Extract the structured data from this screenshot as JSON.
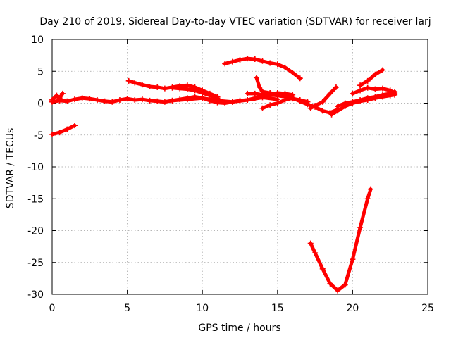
{
  "chart_data": {
    "type": "scatter",
    "title": "Day 210 of 2019, Sidereal Day-to-day VTEC variation (SDTVAR) for receiver larj",
    "xlabel": "GPS time / hours",
    "ylabel": "SDTVAR / TECUs",
    "xlim": [
      0,
      25
    ],
    "ylim": [
      -30,
      10
    ],
    "xticks": [
      0,
      5,
      10,
      15,
      20,
      25
    ],
    "yticks": [
      -30,
      -25,
      -20,
      -15,
      -10,
      -5,
      0,
      5,
      10
    ],
    "grid": true,
    "legend": "none",
    "series_color": "#ff0000",
    "series": [
      {
        "x": [
          0.0,
          0.5,
          1.0,
          1.5
        ],
        "y": [
          -4.9,
          -4.6,
          -4.1,
          -3.5
        ]
      },
      {
        "x": [
          0.0,
          0.3,
          0.5,
          0.7
        ],
        "y": [
          0.5,
          1.2,
          0.8,
          1.5
        ]
      },
      {
        "x": [
          0.0,
          0.5,
          1.0,
          1.5,
          2.0,
          2.5,
          3.0,
          3.5,
          4.0,
          4.5,
          5.0,
          5.5,
          6.0,
          6.5,
          7.0,
          7.5,
          8.0,
          8.5,
          9.0,
          9.5,
          10.0,
          10.5,
          11.0,
          11.5,
          12.0,
          12.5,
          13.0,
          13.5,
          14.0,
          14.5,
          15.0,
          15.5,
          16.0,
          16.5,
          17.0
        ],
        "y": [
          0.2,
          0.4,
          0.3,
          0.6,
          0.8,
          0.7,
          0.5,
          0.3,
          0.2,
          0.5,
          0.7,
          0.5,
          0.6,
          0.4,
          0.3,
          0.2,
          0.4,
          0.6,
          0.8,
          1.0,
          0.8,
          0.4,
          0.1,
          0.0,
          0.2,
          0.4,
          0.5,
          0.8,
          1.0,
          1.3,
          1.2,
          1.0,
          0.7,
          0.5,
          0.2
        ]
      },
      {
        "x": [
          8.0,
          9.0,
          10.0,
          11.0,
          12.0,
          13.0,
          14.0,
          15.0
        ],
        "y": [
          0.4,
          0.6,
          0.8,
          0.4,
          0.2,
          0.5,
          0.9,
          0.6
        ]
      },
      {
        "x": [
          5.1,
          5.5,
          6.0,
          6.5,
          7.0,
          7.5,
          8.0,
          8.5,
          9.0,
          9.5,
          10.0,
          10.5,
          11.0
        ],
        "y": [
          3.5,
          3.2,
          2.9,
          2.6,
          2.5,
          2.3,
          2.5,
          2.7,
          2.8,
          2.5,
          2.0,
          1.5,
          1.0
        ]
      },
      {
        "x": [
          8.0,
          8.5,
          9.0,
          9.5,
          10.0,
          10.5,
          11.0
        ],
        "y": [
          2.4,
          2.3,
          2.2,
          2.0,
          1.6,
          1.2,
          0.8
        ]
      },
      {
        "x": [
          11.5,
          12.0,
          12.5,
          13.0,
          13.5,
          14.0,
          14.5,
          15.0,
          15.5,
          16.0,
          16.5
        ],
        "y": [
          6.2,
          6.5,
          6.8,
          7.0,
          6.9,
          6.6,
          6.3,
          6.1,
          5.6,
          4.8,
          3.9
        ]
      },
      {
        "x": [
          13.6,
          13.8,
          14.0,
          14.5,
          15.0,
          15.5,
          16.0
        ],
        "y": [
          4.0,
          2.5,
          1.8,
          1.6,
          1.4,
          1.1,
          0.9
        ]
      },
      {
        "x": [
          13.0,
          13.5,
          14.0,
          14.5,
          15.0,
          15.5,
          16.0
        ],
        "y": [
          1.5,
          1.5,
          1.3,
          1.4,
          1.6,
          1.5,
          1.3
        ]
      },
      {
        "x": [
          14.0,
          14.5,
          15.0,
          15.5,
          16.0
        ],
        "y": [
          -0.8,
          -0.3,
          0.0,
          0.5,
          0.8
        ]
      },
      {
        "x": [
          16.0,
          16.5,
          17.0,
          17.5,
          18.0,
          18.5,
          19.0
        ],
        "y": [
          0.8,
          0.3,
          -0.2,
          -0.6,
          -1.2,
          -1.5,
          -1.0
        ]
      },
      {
        "x": [
          17.2,
          17.5,
          18.0,
          18.5,
          18.9
        ],
        "y": [
          -0.8,
          -0.4,
          0.2,
          1.5,
          2.5
        ]
      },
      {
        "x": [
          18.6,
          19.0,
          19.5,
          20.0,
          20.5,
          21.0,
          21.5,
          22.0,
          22.5,
          22.8
        ],
        "y": [
          -1.8,
          -1.2,
          -0.5,
          0.0,
          0.3,
          0.5,
          0.8,
          1.0,
          1.2,
          1.3
        ]
      },
      {
        "x": [
          19.0,
          19.5,
          20.0,
          20.5,
          21.0,
          21.5,
          22.0,
          22.5,
          22.8
        ],
        "y": [
          -0.5,
          0.0,
          0.2,
          0.5,
          0.8,
          1.0,
          1.3,
          1.5,
          1.8
        ]
      },
      {
        "x": [
          20.0,
          20.5,
          21.0,
          21.5,
          22.0,
          22.5,
          22.8
        ],
        "y": [
          1.5,
          2.0,
          2.4,
          2.2,
          2.3,
          2.0,
          1.6
        ]
      },
      {
        "x": [
          20.5,
          21.0,
          21.5,
          22.0
        ],
        "y": [
          2.8,
          3.5,
          4.5,
          5.2
        ]
      },
      {
        "x": [
          17.2,
          17.5,
          18.0,
          18.5,
          19.0,
          19.5,
          20.0,
          20.5,
          21.0,
          21.2
        ],
        "y": [
          -22.0,
          -23.5,
          -26.0,
          -28.3,
          -29.4,
          -28.5,
          -24.5,
          -19.5,
          -15.0,
          -13.5
        ]
      }
    ]
  }
}
